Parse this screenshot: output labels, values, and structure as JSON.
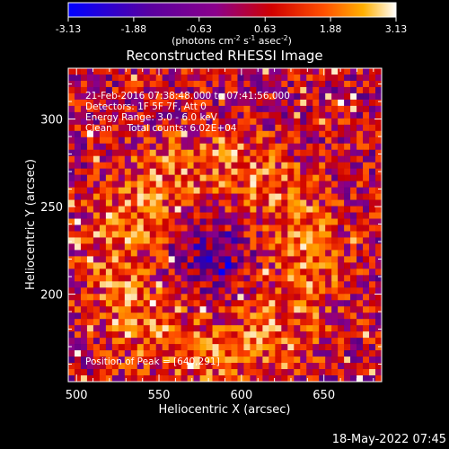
{
  "colorbar": {
    "ticks": [
      "-3.13",
      "-1.88",
      "-0.63",
      "0.63",
      "1.88",
      "3.13"
    ],
    "tick_values": [
      -3.13,
      -1.88,
      -0.63,
      0.63,
      1.88,
      3.13
    ],
    "range": [
      -3.13,
      3.13
    ],
    "unit_prefix": "(photons cm",
    "unit_sup1": "-2",
    "unit_mid": " s",
    "unit_sup2": "-1",
    "unit_mid2": " asec",
    "unit_sup3": "-2",
    "unit_suffix": ")"
  },
  "title": "Reconstructed RHESSI Image",
  "info": {
    "time": "21-Feb-2016 07:38:48.000 to 07:41:56.000",
    "detectors": "Detectors: 1F 5F 7F, Att 0",
    "energy": "Energy Range: 3.0 - 6.0 keV",
    "method": "Clean     Total counts: 6.02E+04"
  },
  "peak_label": "Position of Peak = [640,291]",
  "date_stamp": "18-May-2022 07:45",
  "colors": {
    "background": "#000000",
    "colormap_stops": [
      "#0000ff",
      "#4b0082",
      "#8b008b",
      "#cc0000",
      "#ff4500",
      "#ffa500",
      "#ffffff"
    ]
  },
  "chart_data": {
    "type": "heatmap",
    "title": "Reconstructed RHESSI Image",
    "xlabel": "Heliocentric X (arcsec)",
    "ylabel": "Heliocentric Y (arcsec)",
    "xlim": [
      495,
      685
    ],
    "ylim": [
      150,
      329
    ],
    "x_ticks": [
      500,
      550,
      600,
      650
    ],
    "y_ticks": [
      200,
      250,
      300
    ],
    "colormap": "blue-purple-red-yellow-white",
    "value_range": [
      -3.13,
      3.13
    ],
    "peak_position": [
      640,
      291
    ],
    "grid": false
  }
}
